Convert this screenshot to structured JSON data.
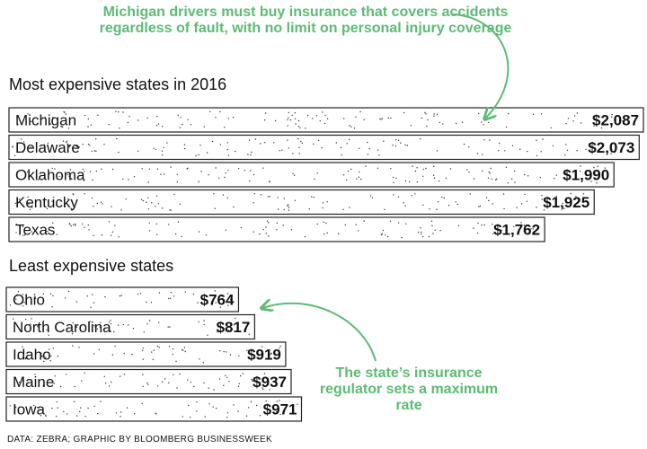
{
  "annotations": {
    "michigan": "Michigan drivers must buy insurance that covers accidents regardless of fault, with no limit on personal injury coverage",
    "north_carolina": "The state’s insurance regulator sets a maximum rate"
  },
  "source": "DATA: ZEBRA; GRAPHIC BY BLOOMBERG BUSINESSWEEK",
  "colors": {
    "annotation": "#5dbb74",
    "bar_border": "#222222",
    "bar_fill": "#ffffff",
    "dots": "#333333"
  },
  "chart_data": [
    {
      "type": "bar",
      "orientation": "horizontal",
      "title": "Most expensive states in 2016",
      "categories": [
        "Michigan",
        "Delaware",
        "Oklahoma",
        "Kentucky",
        "Texas"
      ],
      "values": [
        2087,
        2073,
        1990,
        1925,
        1762
      ],
      "labels": [
        "$2,087",
        "$2,073",
        "$1,990",
        "$1,925",
        "$1,762"
      ],
      "unit": "USD"
    },
    {
      "type": "bar",
      "orientation": "horizontal",
      "title": "Least expensive states",
      "categories": [
        "Ohio",
        "North Carolina",
        "Idaho",
        "Maine",
        "Iowa"
      ],
      "values": [
        764,
        817,
        919,
        937,
        971
      ],
      "labels": [
        "$764",
        "$817",
        "$919",
        "$937",
        "$971"
      ],
      "unit": "USD"
    }
  ]
}
